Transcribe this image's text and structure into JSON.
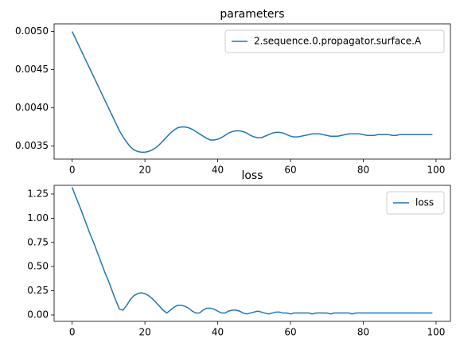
{
  "chart_data": [
    {
      "type": "line",
      "title": "parameters",
      "legend": "upper right",
      "x": [
        0,
        1,
        2,
        3,
        4,
        5,
        6,
        7,
        8,
        9,
        10,
        11,
        12,
        13,
        14,
        15,
        16,
        17,
        18,
        19,
        20,
        21,
        22,
        23,
        24,
        25,
        26,
        27,
        28,
        29,
        30,
        31,
        32,
        33,
        34,
        35,
        36,
        37,
        38,
        39,
        40,
        41,
        42,
        43,
        44,
        45,
        46,
        47,
        48,
        49,
        50,
        51,
        52,
        53,
        54,
        55,
        56,
        57,
        58,
        59,
        60,
        61,
        62,
        63,
        64,
        65,
        66,
        67,
        68,
        69,
        70,
        71,
        72,
        73,
        74,
        75,
        76,
        77,
        78,
        79,
        80,
        81,
        82,
        83,
        84,
        85,
        86,
        87,
        88,
        89,
        90,
        91,
        92,
        93,
        94,
        95,
        96,
        97,
        98,
        99
      ],
      "series": [
        {
          "name": "2.sequence.0.propagator.surface.A",
          "color": "#1f77b4",
          "values": [
            0.005,
            0.0049,
            0.0048,
            0.0047,
            0.0046,
            0.0045,
            0.0044,
            0.0043,
            0.0042,
            0.0041,
            0.004,
            0.0039,
            0.0038,
            0.0037,
            0.00362,
            0.00355,
            0.00349,
            0.00345,
            0.00343,
            0.00342,
            0.00342,
            0.00343,
            0.00345,
            0.00348,
            0.00352,
            0.00357,
            0.00362,
            0.00367,
            0.00371,
            0.00374,
            0.00375,
            0.00375,
            0.00374,
            0.00372,
            0.00369,
            0.00366,
            0.00363,
            0.0036,
            0.00358,
            0.00358,
            0.00359,
            0.00361,
            0.00364,
            0.00367,
            0.00369,
            0.0037,
            0.0037,
            0.00369,
            0.00367,
            0.00364,
            0.00362,
            0.00361,
            0.00361,
            0.00363,
            0.00365,
            0.00367,
            0.00368,
            0.00368,
            0.00367,
            0.00365,
            0.00363,
            0.00362,
            0.00362,
            0.00363,
            0.00364,
            0.00365,
            0.00366,
            0.00366,
            0.00366,
            0.00365,
            0.00364,
            0.00363,
            0.00363,
            0.00363,
            0.00364,
            0.00365,
            0.00366,
            0.00366,
            0.00366,
            0.00366,
            0.00365,
            0.00364,
            0.00364,
            0.00364,
            0.00365,
            0.00365,
            0.00365,
            0.00365,
            0.00364,
            0.00364,
            0.00365,
            0.00365,
            0.00365,
            0.00365,
            0.00365,
            0.00365,
            0.00365,
            0.00365,
            0.00365,
            0.00365
          ]
        }
      ],
      "xlim": [
        -4.95,
        103.95
      ],
      "xticks": [
        0,
        20,
        40,
        60,
        80,
        100
      ],
      "ylim": [
        0.00333,
        0.0051
      ],
      "yticks": [
        {
          "value": 0.0035,
          "label": "0.0035"
        },
        {
          "value": 0.004,
          "label": "0.0040"
        },
        {
          "value": 0.0045,
          "label": "0.0045"
        },
        {
          "value": 0.005,
          "label": "0.0050"
        }
      ]
    },
    {
      "type": "line",
      "title": "loss",
      "legend": "upper right",
      "x": [
        0,
        1,
        2,
        3,
        4,
        5,
        6,
        7,
        8,
        9,
        10,
        11,
        12,
        13,
        14,
        15,
        16,
        17,
        18,
        19,
        20,
        21,
        22,
        23,
        24,
        25,
        26,
        27,
        28,
        29,
        30,
        31,
        32,
        33,
        34,
        35,
        36,
        37,
        38,
        39,
        40,
        41,
        42,
        43,
        44,
        45,
        46,
        47,
        48,
        49,
        50,
        51,
        52,
        53,
        54,
        55,
        56,
        57,
        58,
        59,
        60,
        61,
        62,
        63,
        64,
        65,
        66,
        67,
        68,
        69,
        70,
        71,
        72,
        73,
        74,
        75,
        76,
        77,
        78,
        79,
        80,
        81,
        82,
        83,
        84,
        85,
        86,
        87,
        88,
        89,
        90,
        91,
        92,
        93,
        94,
        95,
        96,
        97,
        98,
        99
      ],
      "series": [
        {
          "name": "loss",
          "color": "#1f77b4",
          "values": [
            1.32,
            1.22,
            1.13,
            1.03,
            0.93,
            0.83,
            0.74,
            0.64,
            0.54,
            0.44,
            0.35,
            0.25,
            0.15,
            0.06,
            0.05,
            0.1,
            0.16,
            0.2,
            0.22,
            0.23,
            0.22,
            0.2,
            0.17,
            0.13,
            0.09,
            0.05,
            0.02,
            0.05,
            0.08,
            0.1,
            0.1,
            0.09,
            0.07,
            0.04,
            0.02,
            0.02,
            0.05,
            0.07,
            0.07,
            0.06,
            0.04,
            0.02,
            0.02,
            0.04,
            0.05,
            0.05,
            0.04,
            0.02,
            0.01,
            0.02,
            0.03,
            0.04,
            0.03,
            0.02,
            0.01,
            0.02,
            0.03,
            0.03,
            0.02,
            0.02,
            0.01,
            0.02,
            0.02,
            0.02,
            0.02,
            0.02,
            0.01,
            0.02,
            0.02,
            0.02,
            0.02,
            0.01,
            0.02,
            0.02,
            0.02,
            0.02,
            0.02,
            0.01,
            0.02,
            0.02,
            0.02,
            0.02,
            0.02,
            0.02,
            0.02,
            0.02,
            0.02,
            0.02,
            0.02,
            0.02,
            0.02,
            0.02,
            0.02,
            0.02,
            0.02,
            0.02,
            0.02,
            0.02,
            0.02,
            0.02
          ]
        }
      ],
      "xlim": [
        -4.95,
        103.95
      ],
      "xticks": [
        0,
        20,
        40,
        60,
        80,
        100
      ],
      "ylim": [
        -0.066,
        1.34
      ],
      "yticks": [
        {
          "value": 0,
          "label": "0.00"
        },
        {
          "value": 0.25,
          "label": "0.25"
        },
        {
          "value": 0.5,
          "label": "0.50"
        },
        {
          "value": 0.75,
          "label": "0.75"
        },
        {
          "value": 1,
          "label": "1.00"
        },
        {
          "value": 1.25,
          "label": "1.25"
        }
      ]
    }
  ]
}
